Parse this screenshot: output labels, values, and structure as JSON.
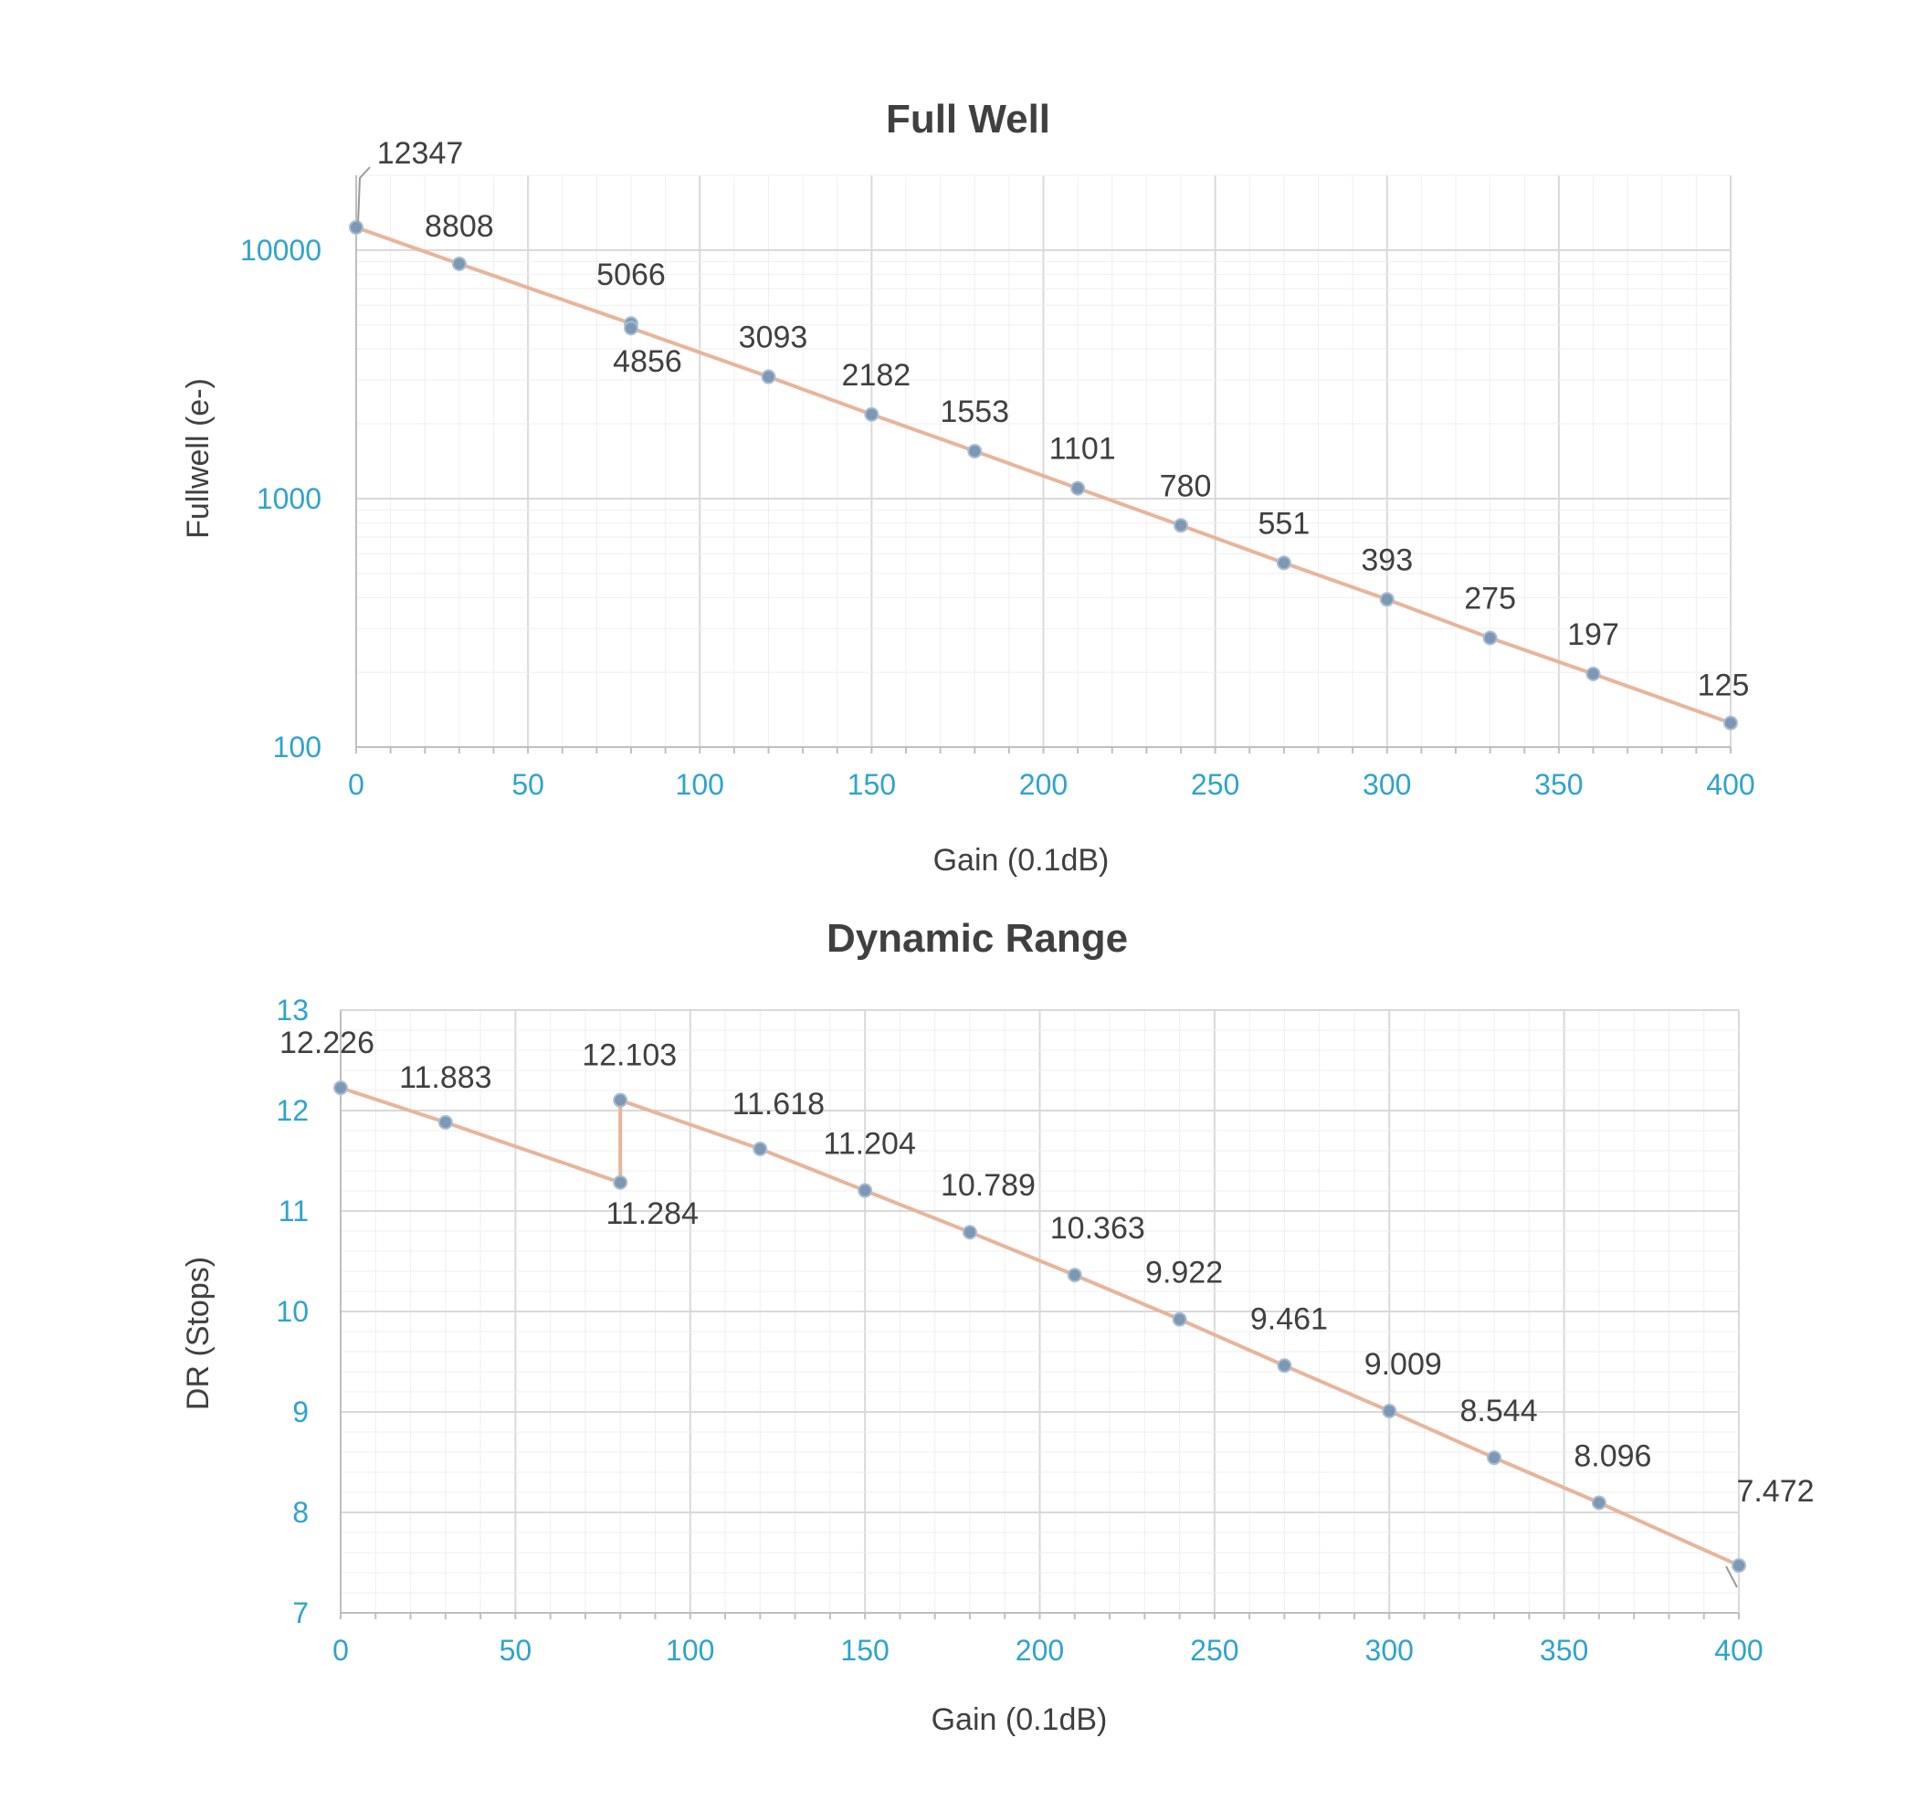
{
  "colors": {
    "axis_text": "#2ea3cf",
    "line": "#e8b49a",
    "marker": "#7d98b4",
    "text": "#404040",
    "grid_major": "#d9d9d9",
    "grid_minor": "#efefef"
  },
  "chart_data": [
    {
      "type": "line",
      "title": "Full Well",
      "xlabel": "Gain (0.1dB)",
      "ylabel": "Fullwell (e-)",
      "yscale": "log",
      "xlim": [
        0,
        400
      ],
      "ylim": [
        100,
        20000
      ],
      "xticks": [
        0,
        50,
        100,
        150,
        200,
        250,
        300,
        350,
        400
      ],
      "xtick_labels": [
        "0",
        "50",
        "100",
        "150",
        "200",
        "250",
        "300",
        "350",
        "400"
      ],
      "yticks": [
        100,
        1000,
        10000
      ],
      "ytick_labels": [
        "100",
        "1000",
        "10000"
      ],
      "grid": true,
      "series": [
        {
          "name": "Full Well",
          "x": [
            0,
            30,
            80,
            80,
            120,
            150,
            180,
            210,
            240,
            270,
            300,
            330,
            360,
            400
          ],
          "y": [
            12347,
            8808,
            5066,
            4856,
            3093,
            2182,
            1553,
            1101,
            780,
            551,
            393,
            275,
            197,
            125
          ],
          "labels": [
            "12347",
            "8808",
            "5066",
            "4856",
            "3093",
            "2182",
            "1553",
            "1101",
            "780",
            "551",
            "393",
            "275",
            "197",
            "125"
          ]
        }
      ]
    },
    {
      "type": "line",
      "title": "Dynamic Range",
      "xlabel": "Gain (0.1dB)",
      "ylabel": "DR (Stops)",
      "yscale": "linear",
      "xlim": [
        0,
        400
      ],
      "ylim": [
        7,
        13
      ],
      "xticks": [
        0,
        50,
        100,
        150,
        200,
        250,
        300,
        350,
        400
      ],
      "xtick_labels": [
        "0",
        "50",
        "100",
        "150",
        "200",
        "250",
        "300",
        "350",
        "400"
      ],
      "yticks": [
        7,
        8,
        9,
        10,
        11,
        12,
        13
      ],
      "ytick_labels": [
        "7",
        "8",
        "9",
        "10",
        "11",
        "12",
        "13"
      ],
      "grid": true,
      "series": [
        {
          "name": "Dynamic Range",
          "x": [
            0,
            30,
            80,
            80,
            120,
            150,
            180,
            210,
            240,
            270,
            300,
            330,
            360,
            400
          ],
          "y": [
            12.226,
            11.883,
            11.284,
            12.103,
            11.618,
            11.204,
            10.789,
            10.363,
            9.922,
            9.461,
            9.009,
            8.544,
            8.096,
            7.472
          ],
          "labels": [
            "12.226",
            "11.883",
            "11.284",
            "12.103",
            "11.618",
            "11.204",
            "10.789",
            "10.363",
            "9.922",
            "9.461",
            "9.009",
            "8.544",
            "8.096",
            "7.472"
          ]
        }
      ]
    }
  ]
}
